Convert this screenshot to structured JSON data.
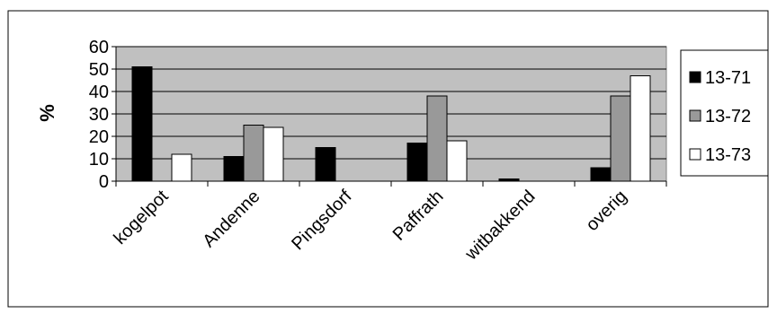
{
  "chart_data": {
    "type": "bar",
    "title": "",
    "xlabel": "",
    "ylabel": "%",
    "ylim": [
      0,
      60
    ],
    "yticks": [
      0,
      10,
      20,
      30,
      40,
      50,
      60
    ],
    "categories": [
      "kogelpot",
      "Andenne",
      "Pingsdorf",
      "Paffrath",
      "witbakkend",
      "overig"
    ],
    "series": [
      {
        "name": "13-71",
        "values": [
          51,
          11,
          15,
          17,
          1,
          6
        ],
        "color": "#000000"
      },
      {
        "name": "13-72",
        "values": [
          0,
          25,
          0,
          38,
          0,
          38
        ],
        "color": "#999999"
      },
      {
        "name": "13-73",
        "values": [
          12,
          24,
          0,
          18,
          0,
          47
        ],
        "color": "#ffffff"
      }
    ],
    "grid": true,
    "legend": "right",
    "plot_background": "#c0c0c0"
  }
}
